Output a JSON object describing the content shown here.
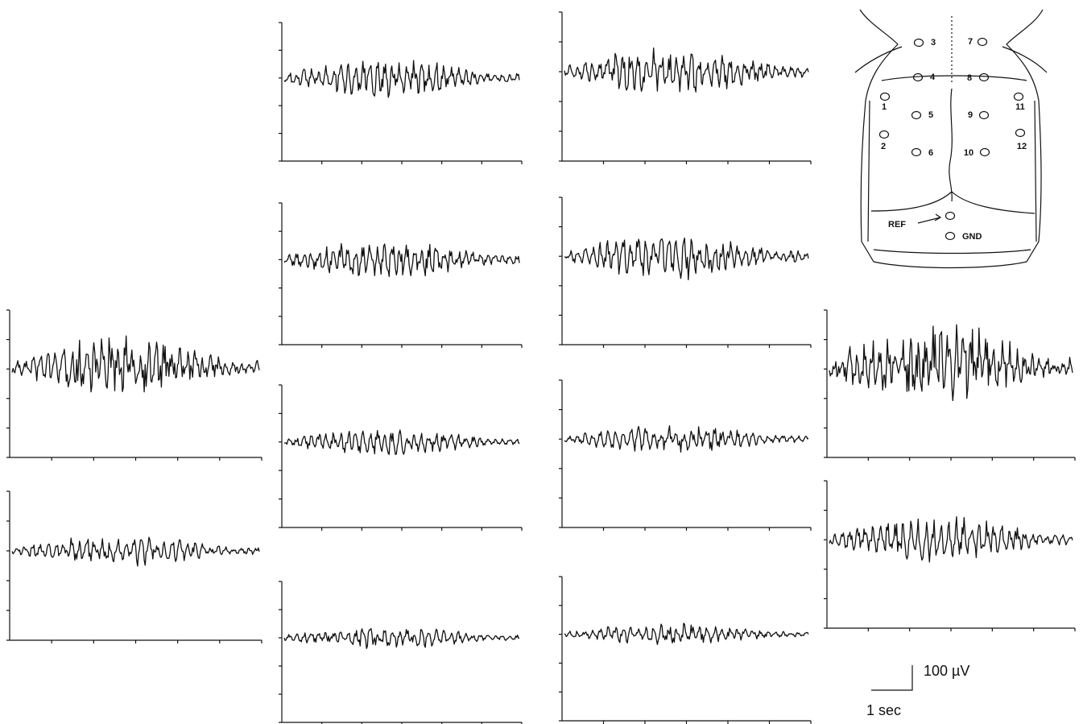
{
  "electrodes": [
    "1",
    "2",
    "3",
    "4",
    "5",
    "6",
    "7",
    "8",
    "9",
    "10",
    "11",
    "12"
  ],
  "reference": "REF",
  "ground": "GND",
  "scale_bar": {
    "amplitude": "100 µV",
    "time": "1 sec"
  }
}
